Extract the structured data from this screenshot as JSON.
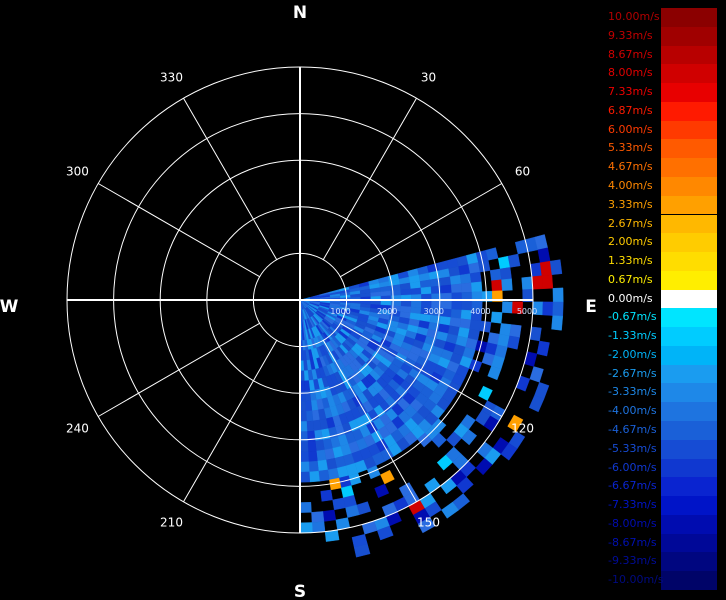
{
  "compass": {
    "north": "N",
    "south": "S",
    "east": "E",
    "west": "W"
  },
  "azimuth_labels": [
    {
      "deg": 30,
      "text": "30"
    },
    {
      "deg": 60,
      "text": "60"
    },
    {
      "deg": 120,
      "text": "120"
    },
    {
      "deg": 150,
      "text": "150"
    },
    {
      "deg": 210,
      "text": "210"
    },
    {
      "deg": 240,
      "text": "240"
    },
    {
      "deg": 300,
      "text": "300"
    },
    {
      "deg": 330,
      "text": "330"
    }
  ],
  "range_labels": [
    "1000",
    "2000",
    "3000",
    "4000",
    "5000"
  ],
  "sector": {
    "start_deg": 75,
    "end_deg": 180,
    "max_range": 5400
  },
  "legend": [
    {
      "label": "10.00m/s",
      "color": "#8b0000",
      "label_color": "#b00000"
    },
    {
      "label": "9.33m/s",
      "color": "#a00000",
      "label_color": "#c00000"
    },
    {
      "label": "8.67m/s",
      "color": "#b80000",
      "label_color": "#d00000"
    },
    {
      "label": "8.00m/s",
      "color": "#d00000",
      "label_color": "#e00000"
    },
    {
      "label": "7.33m/s",
      "color": "#e80000",
      "label_color": "#ee0000"
    },
    {
      "label": "6.87m/s",
      "color": "#ff1a00",
      "label_color": "#ff1a00"
    },
    {
      "label": "6.00m/s",
      "color": "#ff3a00",
      "label_color": "#ff3a00"
    },
    {
      "label": "5.33m/s",
      "color": "#ff5a00",
      "label_color": "#ff5a00"
    },
    {
      "label": "4.67m/s",
      "color": "#ff7000",
      "label_color": "#ff7000"
    },
    {
      "label": "4.00m/s",
      "color": "#ff8800",
      "label_color": "#ff8800"
    },
    {
      "label": "3.33m/s",
      "color": "#ffa000",
      "label_color": "#ffa000"
    },
    {
      "label": "2.67m/s",
      "color": "#ffb800",
      "label_color": "#ffb800"
    },
    {
      "label": "2.00m/s",
      "color": "#ffcc00",
      "label_color": "#ffcc00"
    },
    {
      "label": "1.33m/s",
      "color": "#ffdd00",
      "label_color": "#ffdd00"
    },
    {
      "label": "0.67m/s",
      "color": "#ffee00",
      "label_color": "#ffee00"
    },
    {
      "label": "0.00m/s",
      "color": "#ffffff",
      "label_color": "#ffffff"
    },
    {
      "label": "-0.67m/s",
      "color": "#00e5ff",
      "label_color": "#00e5ff"
    },
    {
      "label": "-1.33m/s",
      "color": "#00ccff",
      "label_color": "#00ccff"
    },
    {
      "label": "-2.00m/s",
      "color": "#00b4f8",
      "label_color": "#00b4f8"
    },
    {
      "label": "-2.67m/s",
      "color": "#1a9cf0",
      "label_color": "#1a9cf0"
    },
    {
      "label": "-3.33m/s",
      "color": "#1e88e8",
      "label_color": "#1e88e8"
    },
    {
      "label": "-4.00m/s",
      "color": "#1e74e0",
      "label_color": "#1e74e0"
    },
    {
      "label": "-4.67m/s",
      "color": "#1a60d8",
      "label_color": "#1a60d8"
    },
    {
      "label": "-5.33m/s",
      "color": "#164cd4",
      "label_color": "#164cd4"
    },
    {
      "label": "-6.00m/s",
      "color": "#1038d0",
      "label_color": "#1038d0"
    },
    {
      "label": "-6.67m/s",
      "color": "#0a24d0",
      "label_color": "#0a24d0"
    },
    {
      "label": "-7.33m/s",
      "color": "#0014c8",
      "label_color": "#0014c8"
    },
    {
      "label": "-8.00m/s",
      "color": "#000cb0",
      "label_color": "#000cb0"
    },
    {
      "label": "-8.67m/s",
      "color": "#000898",
      "label_color": "#0010b0"
    },
    {
      "label": "-9.33m/s",
      "color": "#000680",
      "label_color": "#000c98"
    },
    {
      "label": "-10.00m/s",
      "color": "#000468",
      "label_color": "#000a80"
    }
  ]
}
